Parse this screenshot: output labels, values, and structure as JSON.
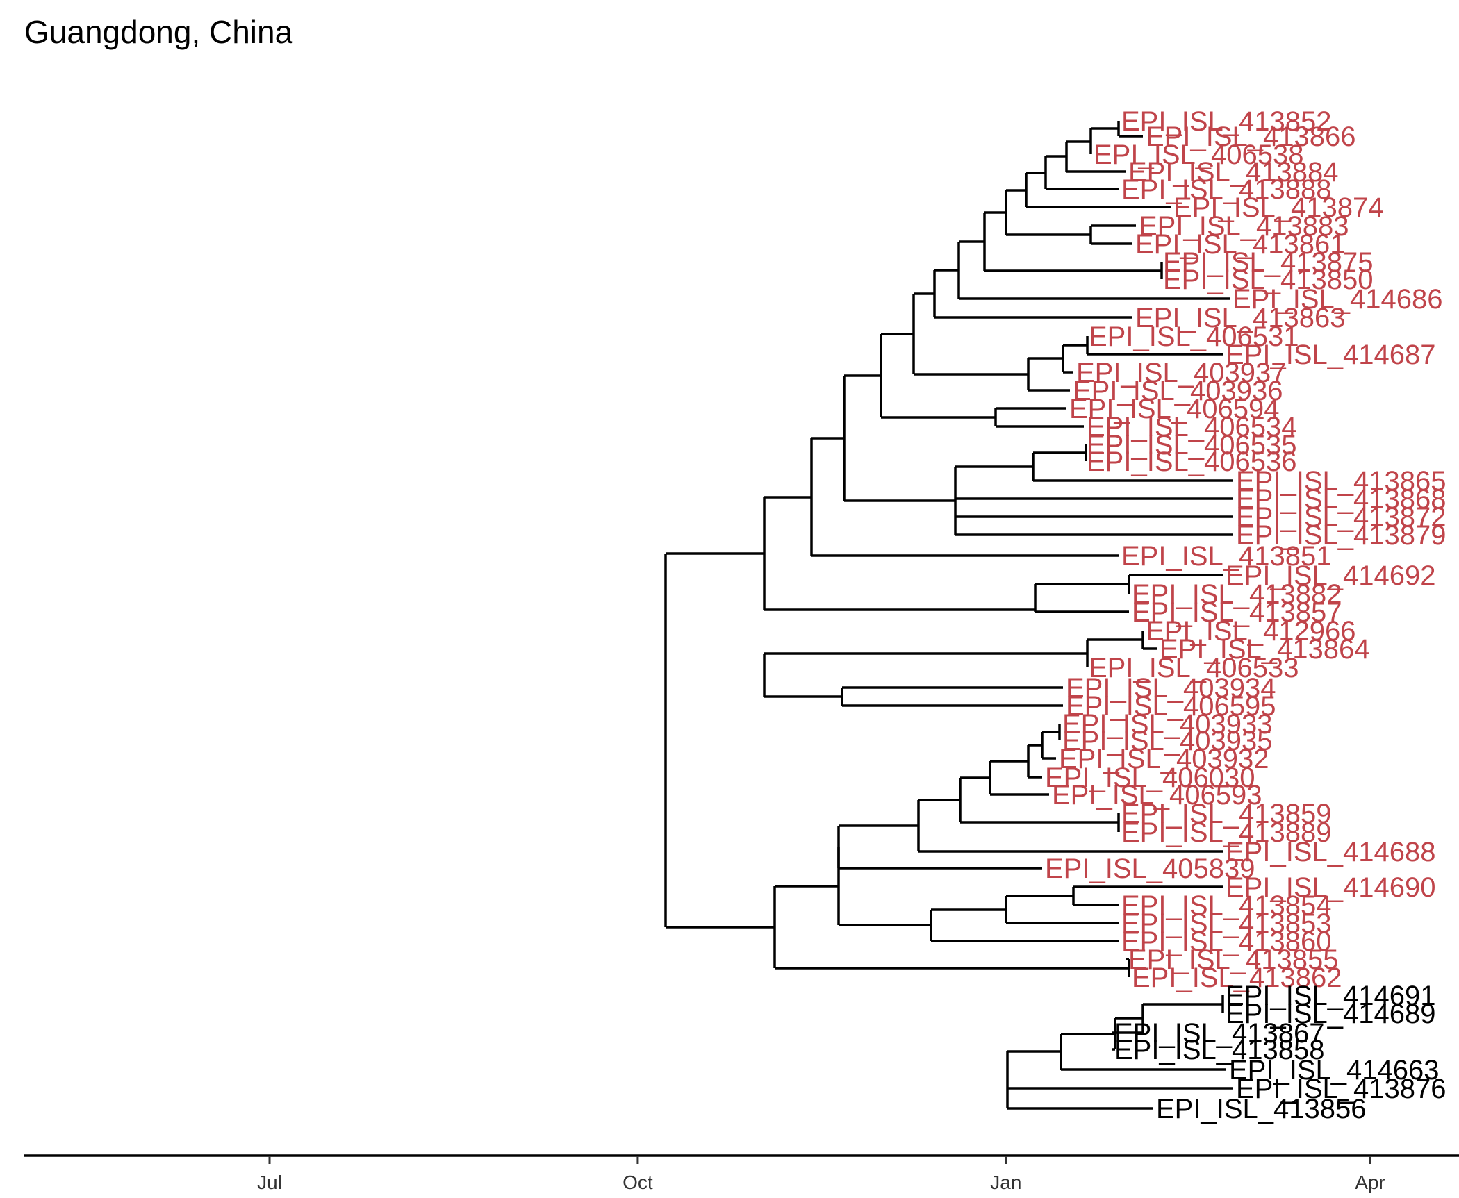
{
  "title": "Guangdong, China",
  "colors": {
    "red": "#c0444a",
    "black": "#000000"
  },
  "axis": {
    "ticks": [
      {
        "label": "Jul",
        "date": "2019-07-01"
      },
      {
        "label": "Oct",
        "date": "2019-10-01"
      },
      {
        "label": "Jan",
        "date": "2020-01-01"
      },
      {
        "label": "Apr",
        "date": "2020-04-01"
      }
    ]
  },
  "tips": [
    {
      "label": "EPI_ISL_413852",
      "color": "red"
    },
    {
      "label": "EPI_ISL_413866",
      "color": "red"
    },
    {
      "label": "EPI_ISL_406538",
      "color": "red"
    },
    {
      "label": "EPI_ISL_413884",
      "color": "red"
    },
    {
      "label": "EPI_ISL_413888",
      "color": "red"
    },
    {
      "label": "EPI_ISL_413874",
      "color": "red"
    },
    {
      "label": "EPI_ISL_413883",
      "color": "red"
    },
    {
      "label": "EPI_ISL_413861",
      "color": "red"
    },
    {
      "label": "EPI_ISL_413875",
      "color": "red"
    },
    {
      "label": "EPI_ISL_413850",
      "color": "red"
    },
    {
      "label": "EPI_ISL_414686",
      "color": "red"
    },
    {
      "label": "EPI_ISL_413863",
      "color": "red"
    },
    {
      "label": "EPI_ISL_406531",
      "color": "red"
    },
    {
      "label": "EPI_ISL_414687",
      "color": "red"
    },
    {
      "label": "EPI_ISL_403937",
      "color": "red"
    },
    {
      "label": "EPI_ISL_403936",
      "color": "red"
    },
    {
      "label": "EPI_ISL_406594",
      "color": "red"
    },
    {
      "label": "EPI_ISL_406534",
      "color": "red"
    },
    {
      "label": "EPI_ISL_406535",
      "color": "red"
    },
    {
      "label": "EPI_ISL_406536",
      "color": "red"
    },
    {
      "label": "EPI_ISL_413865",
      "color": "red"
    },
    {
      "label": "EPI_ISL_413868",
      "color": "red"
    },
    {
      "label": "EPI_ISL_413872",
      "color": "red"
    },
    {
      "label": "EPI_ISL_413879",
      "color": "red"
    },
    {
      "label": "EPI_ISL_413851",
      "color": "red"
    },
    {
      "label": "EPI_ISL_414692",
      "color": "red"
    },
    {
      "label": "EPI_ISL_413882",
      "color": "red"
    },
    {
      "label": "EPI_ISL_413857",
      "color": "red"
    },
    {
      "label": "EPI_ISL_412966",
      "color": "red"
    },
    {
      "label": "EPI_ISL_413864",
      "color": "red"
    },
    {
      "label": "EPI_ISL_406533",
      "color": "red"
    },
    {
      "label": "EPI_ISL_403934",
      "color": "red"
    },
    {
      "label": "EPI_ISL_406595",
      "color": "red"
    },
    {
      "label": "EPI_ISL_403933",
      "color": "red"
    },
    {
      "label": "EPI_ISL_403935",
      "color": "red"
    },
    {
      "label": "EPI_ISL_403932",
      "color": "red"
    },
    {
      "label": "EPI_ISL_406030",
      "color": "red"
    },
    {
      "label": "EPI_ISL_406593",
      "color": "red"
    },
    {
      "label": "EPI_ISL_413859",
      "color": "red"
    },
    {
      "label": "EPI_ISL_413889",
      "color": "red"
    },
    {
      "label": "EPI_ISL_414688",
      "color": "red"
    },
    {
      "label": "EPI_ISL_405839",
      "color": "red"
    },
    {
      "label": "EPI_ISL_414690",
      "color": "red"
    },
    {
      "label": "EPI_ISL_413854",
      "color": "red"
    },
    {
      "label": "EPI_ISL_413853",
      "color": "red"
    },
    {
      "label": "EPI_ISL_413860",
      "color": "red"
    },
    {
      "label": "EPI_ISL_413855",
      "color": "red"
    },
    {
      "label": "EPI_ISL_413862",
      "color": "red"
    },
    {
      "label": "EPI_ISL_414691",
      "color": "black"
    },
    {
      "label": "EPI_ISL_414689",
      "color": "black"
    },
    {
      "label": "EPI_ISL_413867",
      "color": "black"
    },
    {
      "label": "EPI_ISL_413858",
      "color": "black"
    },
    {
      "label": "EPI_ISL_414663",
      "color": "black"
    },
    {
      "label": "EPI_ISL_413876",
      "color": "black"
    },
    {
      "label": "EPI_ISL_413856",
      "color": "black"
    }
  ]
}
